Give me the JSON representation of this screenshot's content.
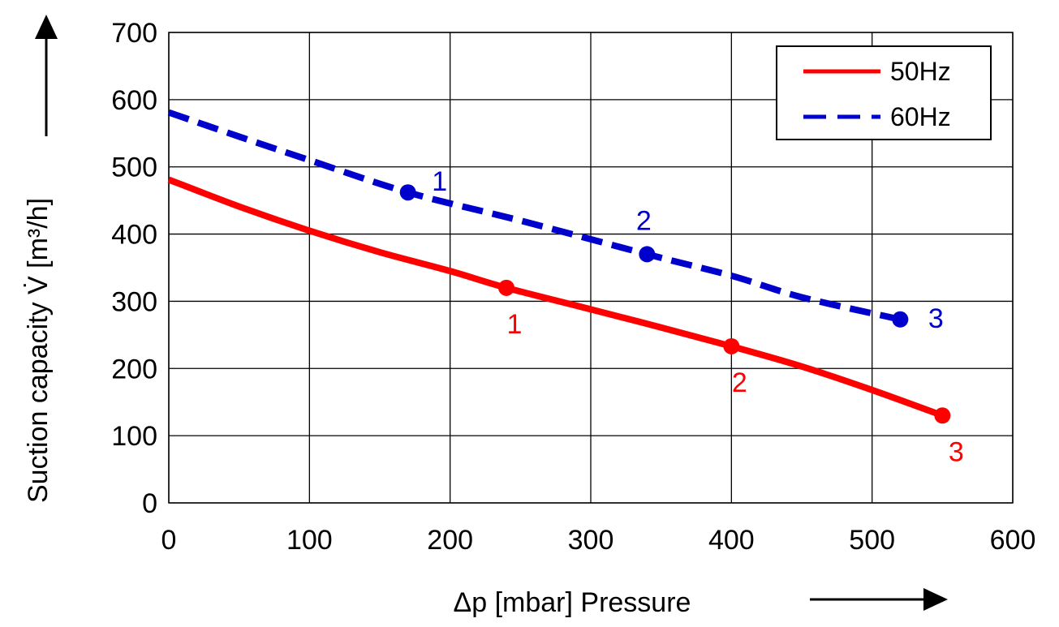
{
  "chart_data": {
    "type": "line",
    "xlabel": "Δp [mbar] Pressure",
    "ylabel": "Suction capacity V̇ [m³/h]",
    "xlim": [
      0,
      600
    ],
    "ylim": [
      0,
      700
    ],
    "xticks": [
      0,
      100,
      200,
      300,
      400,
      500,
      600
    ],
    "yticks": [
      0,
      100,
      200,
      300,
      400,
      500,
      600,
      700
    ],
    "grid": true,
    "legend_position": "top-right",
    "series": [
      {
        "name": "50Hz",
        "color": "#ff0000",
        "style": "solid",
        "x": [
          0,
          50,
          100,
          150,
          200,
          240,
          300,
          350,
          400,
          450,
          500,
          550
        ],
        "y": [
          481,
          441,
          405,
          373,
          345,
          320,
          288,
          261,
          233,
          203,
          168,
          130
        ],
        "markers": [
          {
            "x": 240,
            "y": 320,
            "label": "1"
          },
          {
            "x": 400,
            "y": 233,
            "label": "2"
          },
          {
            "x": 550,
            "y": 130,
            "label": "3"
          }
        ]
      },
      {
        "name": "60Hz",
        "color": "#0000cc",
        "style": "dashed",
        "x": [
          0,
          50,
          100,
          170,
          250,
          340,
          400,
          450,
          520
        ],
        "y": [
          581,
          545,
          510,
          462,
          420,
          370,
          338,
          306,
          273
        ],
        "markers": [
          {
            "x": 170,
            "y": 462,
            "label": "1"
          },
          {
            "x": 340,
            "y": 370,
            "label": "2"
          },
          {
            "x": 520,
            "y": 273,
            "label": "3"
          }
        ]
      }
    ]
  }
}
